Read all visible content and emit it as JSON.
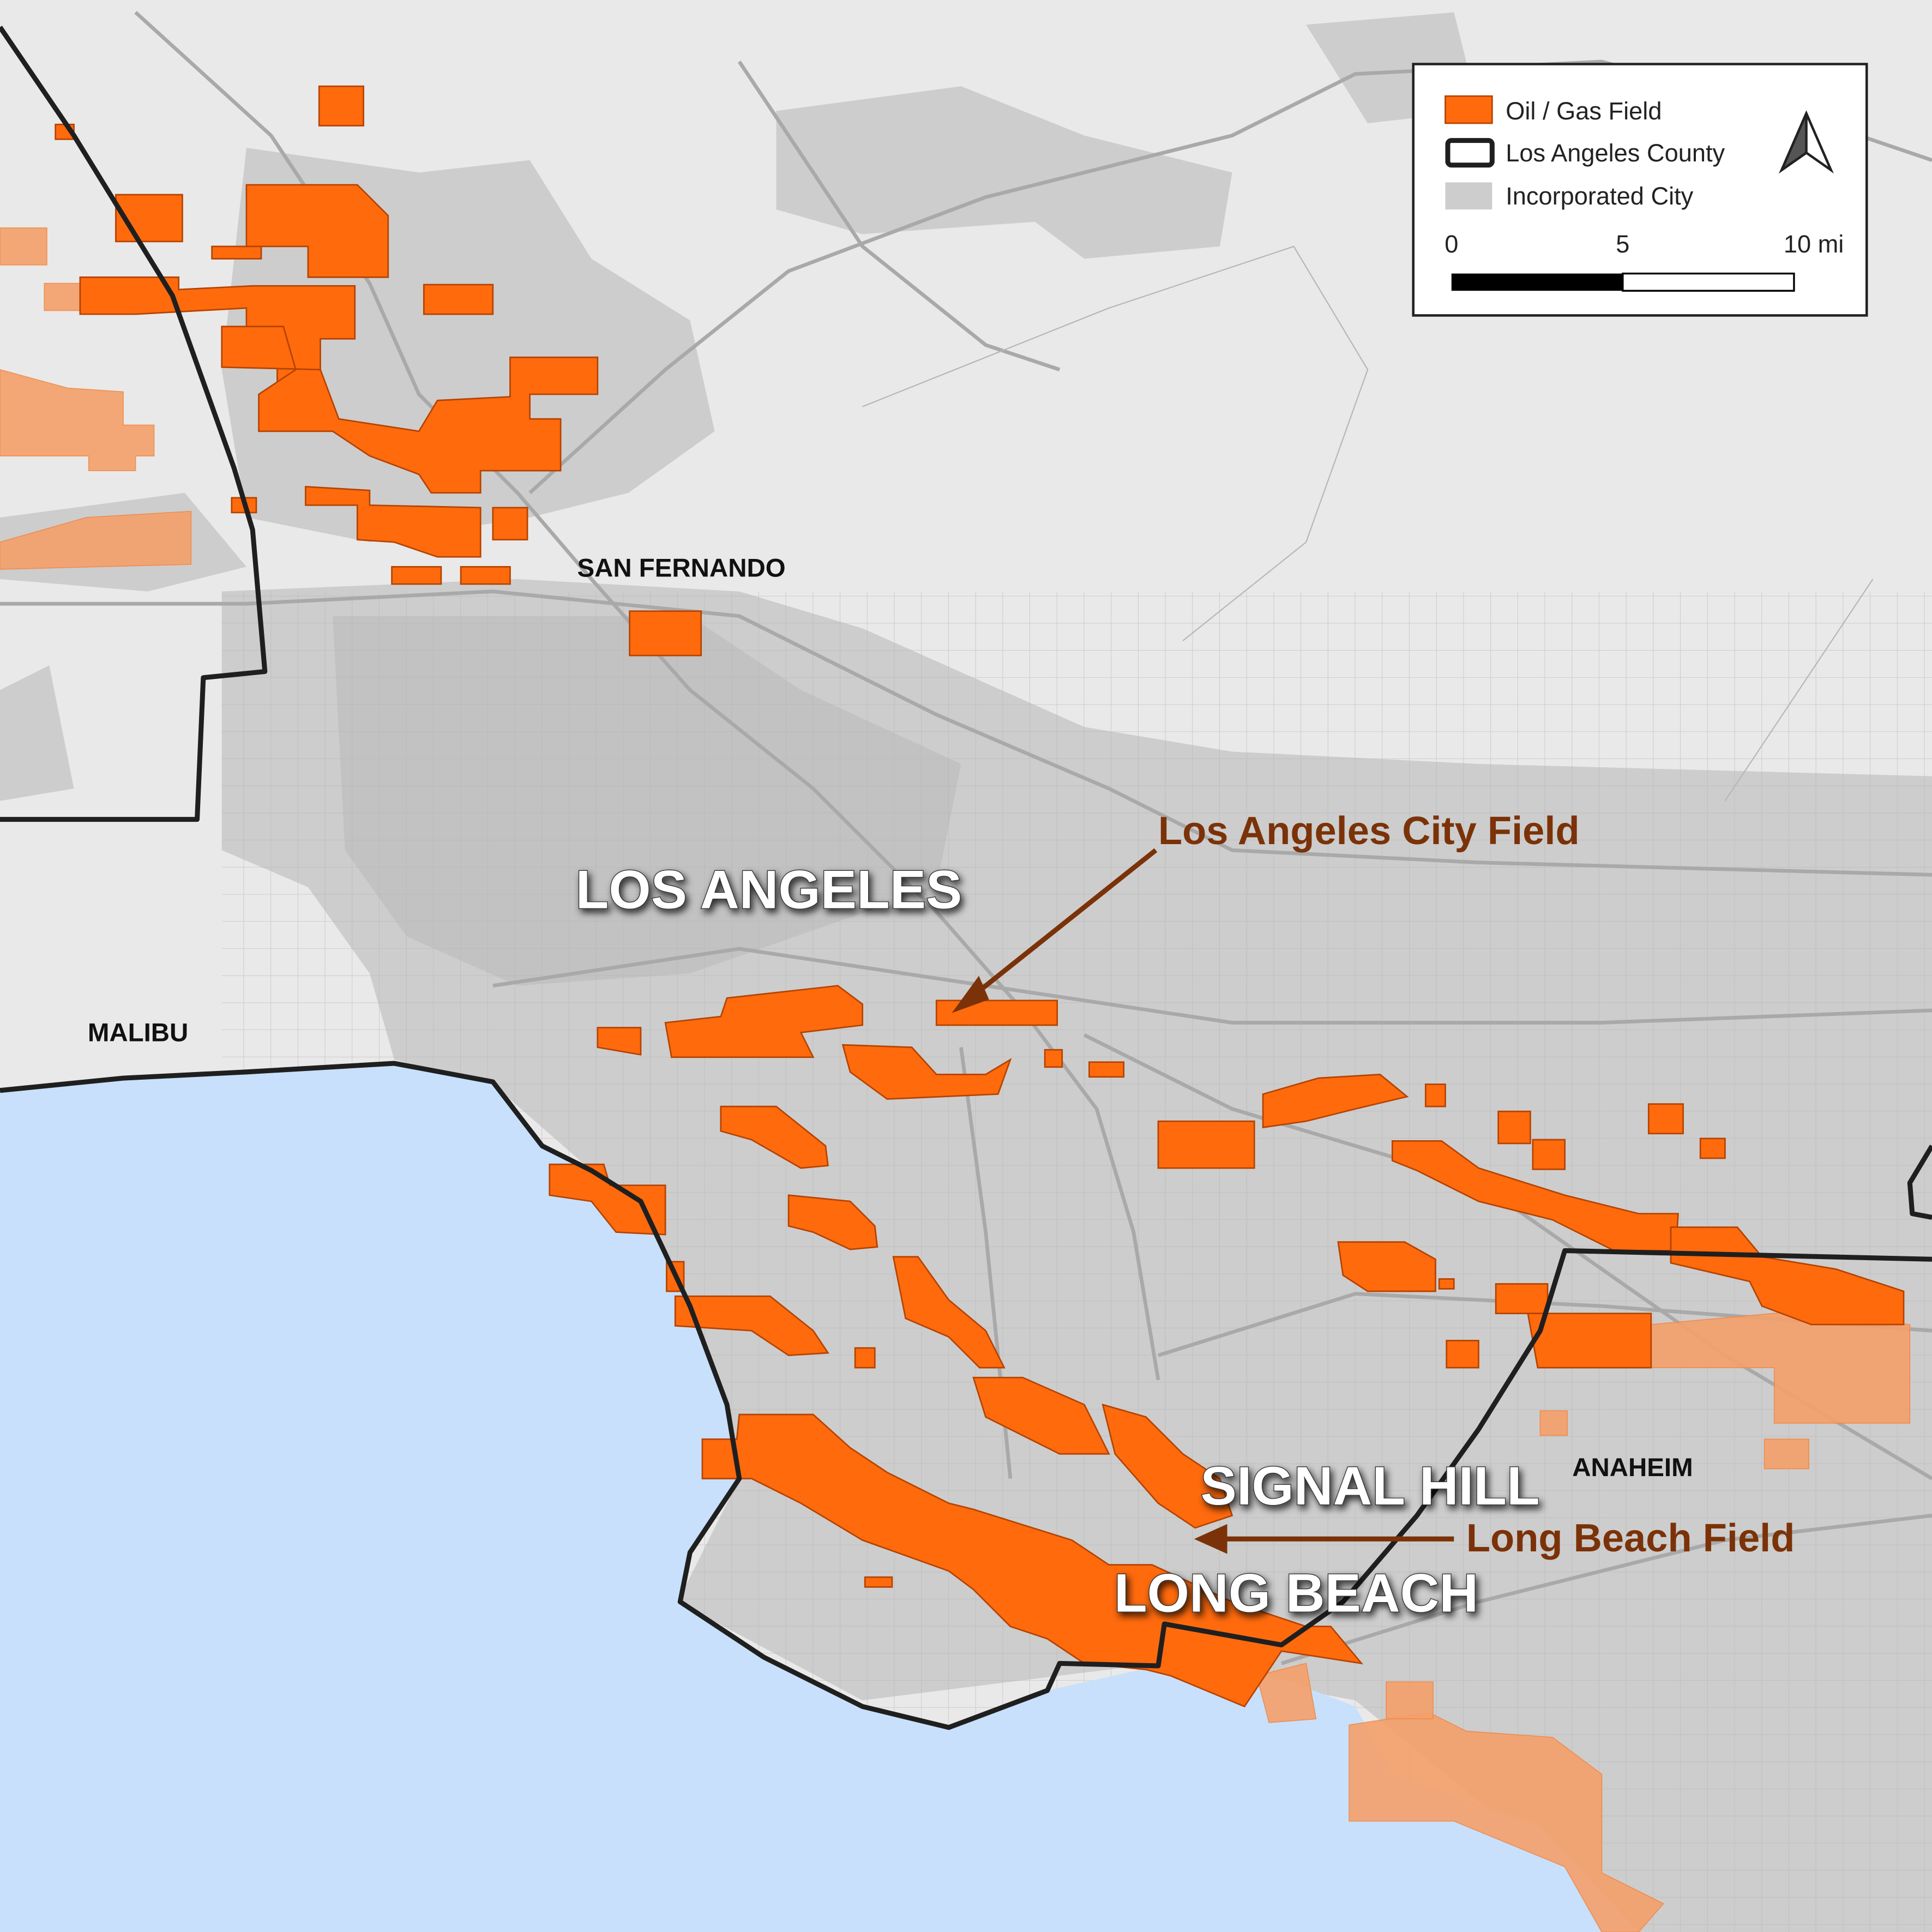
{
  "map": {
    "places": {
      "san_fernando": "SAN FERNANDO",
      "malibu": "MALIBU",
      "los_angeles": "LOS ANGELES",
      "signal_hill": "SIGNAL HILL",
      "anaheim": "ANAHEIM",
      "long_beach": "LONG BEACH"
    },
    "fields": {
      "la_city": "Los Angeles City Field",
      "long_beach": "Long Beach Field"
    },
    "legend": {
      "items": [
        {
          "label": "Oil / Gas Field"
        },
        {
          "label": "Los Angeles County"
        },
        {
          "label": "Incorporated City"
        }
      ],
      "scale": [
        "0",
        "5",
        "10 mi"
      ]
    }
  }
}
